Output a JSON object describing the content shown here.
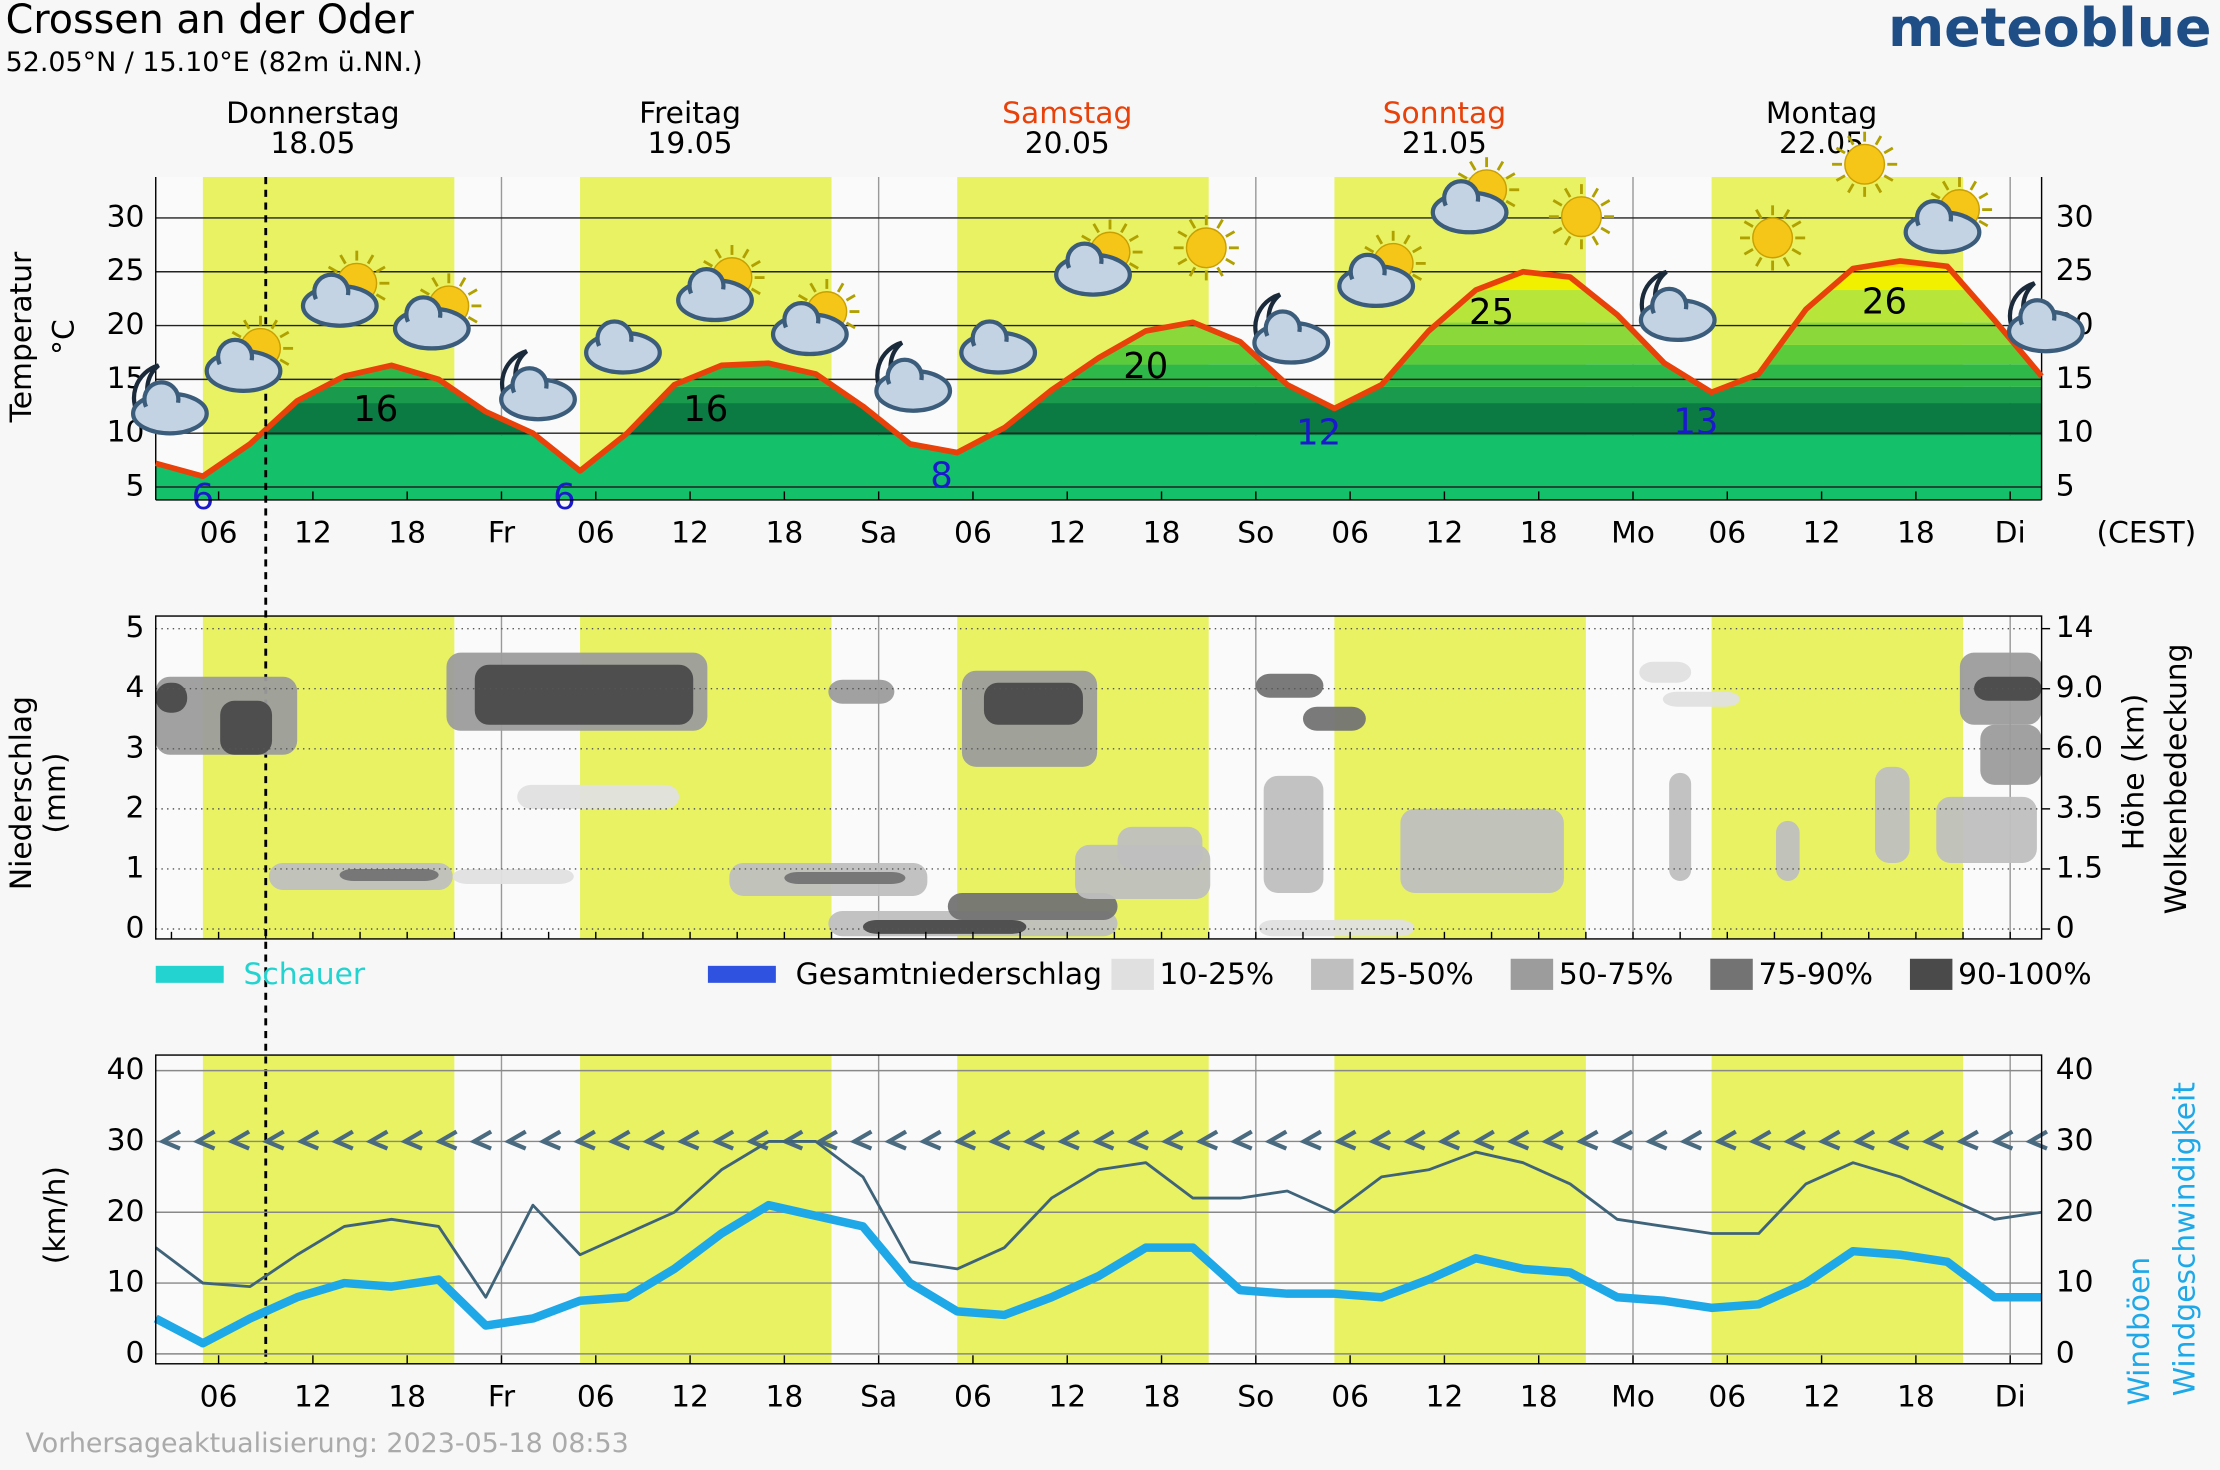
{
  "header": {
    "title": "Crossen an der Oder",
    "subtitle": "52.05°N / 15.10°E (82m ü.NN.)",
    "logo": "meteoblue"
  },
  "footer": "Vorhersageaktualisierung: 2023-05-18 08:53",
  "chart_data": [
    {
      "type": "line",
      "ylabel": "Temperatur",
      "yunit": "°C",
      "xunit": "(CEST)",
      "color": "#e8410a",
      "days": [
        {
          "name": "Donnerstag",
          "date": "18.05",
          "x": 12,
          "color": "#000000"
        },
        {
          "name": "Freitag",
          "date": "19.05",
          "x": 36,
          "color": "#000000"
        },
        {
          "name": "Samstag",
          "date": "20.05",
          "x": 60,
          "color": "#e8410a"
        },
        {
          "name": "Sonntag",
          "date": "21.05",
          "x": 84,
          "color": "#e8410a"
        },
        {
          "name": "Montag",
          "date": "22.05",
          "x": 108,
          "color": "#000000"
        }
      ],
      "daylight": [
        [
          5,
          21
        ],
        [
          29,
          45
        ],
        [
          53,
          69
        ],
        [
          77,
          93
        ],
        [
          101,
          117
        ]
      ],
      "now": 9,
      "xlim": [
        2,
        122
      ],
      "xticks": [
        {
          "value": 6,
          "label": "06"
        },
        {
          "value": 12,
          "label": "12"
        },
        {
          "value": 18,
          "label": "18"
        },
        {
          "value": 24,
          "label": "Fr"
        },
        {
          "value": 30,
          "label": "06"
        },
        {
          "value": 36,
          "label": "12"
        },
        {
          "value": 42,
          "label": "18"
        },
        {
          "value": 48,
          "label": "Sa"
        },
        {
          "value": 54,
          "label": "06"
        },
        {
          "value": 60,
          "label": "12"
        },
        {
          "value": 66,
          "label": "18"
        },
        {
          "value": 72,
          "label": "So"
        },
        {
          "value": 78,
          "label": "06"
        },
        {
          "value": 84,
          "label": "12"
        },
        {
          "value": 90,
          "label": "18"
        },
        {
          "value": 96,
          "label": "Mo"
        },
        {
          "value": 102,
          "label": "06"
        },
        {
          "value": 108,
          "label": "12"
        },
        {
          "value": 114,
          "label": "18"
        },
        {
          "value": 120,
          "label": "Di"
        }
      ],
      "ylim": [
        3.8,
        33.8
      ],
      "yticks": [
        5,
        10,
        15,
        20,
        25,
        30
      ],
      "x": [
        2,
        5,
        8,
        11,
        14,
        17,
        20,
        23,
        26,
        29,
        32,
        35,
        38,
        41,
        44,
        47,
        50,
        53,
        56,
        59,
        62,
        65,
        68,
        71,
        74,
        77,
        80,
        83,
        86,
        89,
        92,
        95,
        98,
        101,
        104,
        107,
        110,
        113,
        116,
        119,
        122
      ],
      "values": [
        7.2,
        6,
        9,
        13,
        15.3,
        16.3,
        15,
        12,
        10,
        6.5,
        10,
        14.5,
        16.3,
        16.5,
        15.5,
        12.5,
        9,
        8.2,
        10.5,
        14,
        17,
        19.5,
        20.3,
        18.5,
        14.5,
        12.3,
        14.5,
        19.5,
        23.3,
        25,
        24.5,
        21,
        16.5,
        13.8,
        15.5,
        21.5,
        25.3,
        26,
        25.5,
        20.5,
        15.3
      ],
      "labels": [
        {
          "x": 5,
          "value": 6,
          "kind": "min",
          "color": "#1a1acc"
        },
        {
          "x": 16,
          "value": 16,
          "kind": "max",
          "color": "#000000"
        },
        {
          "x": 28,
          "value": 6,
          "kind": "min",
          "color": "#1a1acc"
        },
        {
          "x": 37,
          "value": 16,
          "kind": "max",
          "color": "#000000"
        },
        {
          "x": 52,
          "value": 8,
          "kind": "min",
          "color": "#1a1acc"
        },
        {
          "x": 65,
          "value": 20,
          "kind": "max",
          "color": "#000000"
        },
        {
          "x": 76,
          "value": 12,
          "kind": "min",
          "color": "#1a1acc"
        },
        {
          "x": 87,
          "value": 25,
          "kind": "max",
          "color": "#000000"
        },
        {
          "x": 100,
          "value": 13,
          "kind": "min",
          "color": "#1a1acc"
        },
        {
          "x": 112,
          "value": 26,
          "kind": "max",
          "color": "#000000"
        }
      ]
    },
    {
      "type": "precipitation",
      "ylabel": "Niederschlag",
      "yunit": "(mm)",
      "y2label": "Höhe (km)",
      "y2label2": "Wolkenbedeckung",
      "ylim": [
        -0.165,
        5.21
      ],
      "yticks": [
        0,
        1,
        2,
        3,
        4,
        5
      ],
      "y2ticks": [
        0,
        1.5,
        3.5,
        {
          "value": 6,
          "label": "6.0"
        },
        {
          "value": 9,
          "label": "9.0"
        },
        14
      ],
      "x": [
        2,
        5,
        8,
        11,
        14,
        17,
        20,
        23,
        26,
        29,
        32,
        35,
        38,
        41,
        44,
        47,
        50,
        53,
        56,
        59,
        62,
        65,
        68,
        71,
        74,
        77,
        80,
        83,
        86,
        89,
        92,
        95,
        98,
        101,
        104,
        107,
        110,
        113,
        116,
        119,
        122
      ],
      "series": [
        {
          "name": "Schauer",
          "color": "#22d3d0",
          "values": [
            0,
            0,
            0,
            0,
            0,
            0,
            0,
            0,
            0,
            0,
            0,
            0,
            0,
            0,
            0,
            0,
            0,
            0,
            0,
            0,
            0,
            0,
            0,
            0,
            0,
            0,
            0,
            0,
            0,
            0,
            0,
            0,
            0,
            0,
            0,
            0,
            0,
            0,
            0,
            0,
            0
          ]
        },
        {
          "name": "Gesamtniederschlag",
          "color": "#2f52e0",
          "values": [
            0,
            0,
            0,
            0,
            0,
            0,
            0,
            0,
            0,
            0,
            0,
            0,
            0,
            0,
            0,
            0,
            0,
            0,
            0,
            0,
            0,
            0,
            0,
            0,
            0,
            0,
            0,
            0,
            0,
            0,
            0,
            0,
            0,
            0,
            0,
            0,
            0,
            0,
            0,
            0,
            0
          ]
        }
      ],
      "cover_legend": [
        {
          "name": "10-25%",
          "color": "#e0e0e0"
        },
        {
          "name": "25-50%",
          "color": "#bfbfbf"
        },
        {
          "name": "50-75%",
          "color": "#9c9c9c"
        },
        {
          "name": "75-90%",
          "color": "#737373"
        },
        {
          "name": "90-100%",
          "color": "#4a4a4a"
        }
      ],
      "clouds": [
        {
          "x": [
            2,
            11
          ],
          "y": [
            2.9,
            4.2
          ],
          "cover": 2
        },
        {
          "x": [
            2,
            4
          ],
          "y": [
            3.6,
            4.1
          ],
          "cover": 4
        },
        {
          "x": [
            6.1,
            9.4
          ],
          "y": [
            2.9,
            3.8
          ],
          "cover": 4
        },
        {
          "x": [
            20.5,
            37.1
          ],
          "y": [
            3.3,
            4.6
          ],
          "cover": 2
        },
        {
          "x": [
            22.3,
            36.2
          ],
          "y": [
            3.4,
            4.4
          ],
          "cover": 4
        },
        {
          "x": [
            25,
            35.3
          ],
          "y": [
            2.0,
            2.4
          ],
          "cover": 0
        },
        {
          "x": [
            9.2,
            20.9
          ],
          "y": [
            0.65,
            1.1
          ],
          "cover": 1
        },
        {
          "x": [
            13.7,
            20
          ],
          "y": [
            0.8,
            1.0
          ],
          "cover": 3
        },
        {
          "x": [
            20.9,
            28.6
          ],
          "y": [
            0.75,
            1.0
          ],
          "cover": 0
        },
        {
          "x": [
            38.5,
            51.1
          ],
          "y": [
            0.55,
            1.1
          ],
          "cover": 1
        },
        {
          "x": [
            42,
            49.7
          ],
          "y": [
            0.75,
            0.95
          ],
          "cover": 3
        },
        {
          "x": [
            44.8,
            49
          ],
          "y": [
            3.75,
            4.15
          ],
          "cover": 2
        },
        {
          "x": [
            53.3,
            61.9
          ],
          "y": [
            2.7,
            4.3
          ],
          "cover": 2
        },
        {
          "x": [
            54.7,
            61
          ],
          "y": [
            3.4,
            4.1
          ],
          "cover": 4
        },
        {
          "x": [
            44.8,
            63.2
          ],
          "y": [
            -0.12,
            0.3
          ],
          "cover": 1
        },
        {
          "x": [
            47,
            57.4
          ],
          "y": [
            -0.08,
            0.15
          ],
          "cover": 4
        },
        {
          "x": [
            52.4,
            63.2
          ],
          "y": [
            0.15,
            0.6
          ],
          "cover": 3
        },
        {
          "x": [
            60.5,
            69.1
          ],
          "y": [
            0.5,
            1.4
          ],
          "cover": 1
        },
        {
          "x": [
            63.2,
            68.6
          ],
          "y": [
            1.0,
            1.7
          ],
          "cover": 1
        },
        {
          "x": [
            72,
            76.3
          ],
          "y": [
            3.85,
            4.25
          ],
          "cover": 3
        },
        {
          "x": [
            75,
            79
          ],
          "y": [
            3.3,
            3.7
          ],
          "cover": 3
        },
        {
          "x": [
            72.5,
            76.3
          ],
          "y": [
            0.6,
            2.55
          ],
          "cover": 1
        },
        {
          "x": [
            72.2,
            82.1
          ],
          "y": [
            -0.12,
            0.15
          ],
          "cover": 0
        },
        {
          "x": [
            81.2,
            91.6
          ],
          "y": [
            0.6,
            2.0
          ],
          "cover": 1
        },
        {
          "x": [
            96.4,
            99.7
          ],
          "y": [
            4.1,
            4.45
          ],
          "cover": 0
        },
        {
          "x": [
            97.9,
            102.8
          ],
          "y": [
            3.7,
            3.95
          ],
          "cover": 0
        },
        {
          "x": [
            98.3,
            99.7
          ],
          "y": [
            0.8,
            2.6
          ],
          "cover": 1
        },
        {
          "x": [
            105.1,
            106.6
          ],
          "y": [
            0.8,
            1.8
          ],
          "cover": 1
        },
        {
          "x": [
            111.4,
            113.6
          ],
          "y": [
            1.1,
            2.7
          ],
          "cover": 1
        },
        {
          "x": [
            115.3,
            121.7
          ],
          "y": [
            1.1,
            2.2
          ],
          "cover": 1
        },
        {
          "x": [
            116.8,
            122
          ],
          "y": [
            3.4,
            4.6
          ],
          "cover": 2
        },
        {
          "x": [
            117.7,
            122
          ],
          "y": [
            3.8,
            4.2
          ],
          "cover": 4
        },
        {
          "x": [
            118.1,
            122
          ],
          "y": [
            2.4,
            3.4
          ],
          "cover": 2
        }
      ]
    },
    {
      "type": "line",
      "yunit": "(km/h)",
      "xlim": [
        2,
        122
      ],
      "xticks": [
        {
          "value": 6,
          "label": "06"
        },
        {
          "value": 12,
          "label": "12"
        },
        {
          "value": 18,
          "label": "18"
        },
        {
          "value": 24,
          "label": "Fr"
        },
        {
          "value": 30,
          "label": "06"
        },
        {
          "value": 36,
          "label": "12"
        },
        {
          "value": 42,
          "label": "18"
        },
        {
          "value": 48,
          "label": "Sa"
        },
        {
          "value": 54,
          "label": "06"
        },
        {
          "value": 60,
          "label": "12"
        },
        {
          "value": 66,
          "label": "18"
        },
        {
          "value": 72,
          "label": "So"
        },
        {
          "value": 78,
          "label": "06"
        },
        {
          "value": 84,
          "label": "12"
        },
        {
          "value": 90,
          "label": "18"
        },
        {
          "value": 96,
          "label": "Mo"
        },
        {
          "value": 102,
          "label": "06"
        },
        {
          "value": 108,
          "label": "12"
        },
        {
          "value": 114,
          "label": "18"
        },
        {
          "value": 120,
          "label": "Di"
        }
      ],
      "ylim": [
        -1.4,
        42.2
      ],
      "yticks": [
        0,
        10,
        20,
        30,
        40
      ],
      "x": [
        2,
        5,
        8,
        11,
        14,
        17,
        20,
        23,
        26,
        29,
        32,
        35,
        38,
        41,
        44,
        47,
        50,
        53,
        56,
        59,
        62,
        65,
        68,
        71,
        74,
        77,
        80,
        83,
        86,
        89,
        92,
        95,
        98,
        101,
        104,
        107,
        110,
        113,
        116,
        119,
        122
      ],
      "series": [
        {
          "name": "Windböen",
          "color": "#3f6378",
          "width": 2,
          "values": [
            15,
            10,
            9.5,
            14,
            18,
            19,
            18,
            8,
            21,
            14,
            17,
            20,
            26,
            30,
            30,
            25,
            13,
            12,
            15,
            22,
            26,
            27,
            22,
            22,
            23,
            20,
            25,
            26,
            28.5,
            27,
            24,
            19,
            18,
            17,
            17,
            24,
            27,
            25,
            22,
            19,
            20
          ]
        },
        {
          "name": "Windgeschwindigkeit",
          "color": "#1ea8e8",
          "width": 6,
          "values": [
            5,
            1.5,
            5,
            8,
            10,
            9.5,
            10.5,
            4,
            5,
            7.5,
            8,
            12,
            17,
            21,
            19.5,
            18,
            10,
            6,
            5.5,
            8,
            11,
            15,
            15,
            9,
            8.5,
            8.5,
            8,
            10.5,
            13.5,
            12,
            11.5,
            8,
            7.5,
            6.5,
            7,
            10,
            14.5,
            14,
            13,
            8,
            8
          ]
        }
      ]
    }
  ]
}
